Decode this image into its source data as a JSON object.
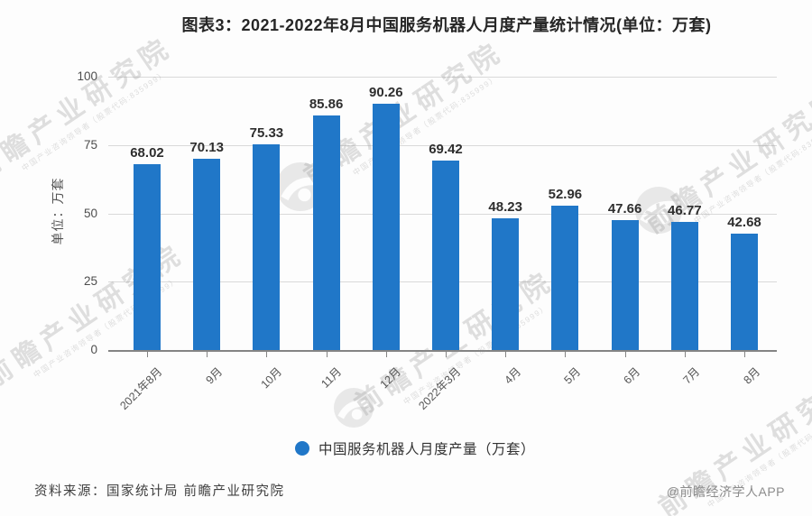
{
  "title": "图表3：2021-2022年8月中国服务机器人月度产量统计情况(单位：万套)",
  "chart_data": {
    "type": "bar",
    "categories": [
      "2021年8月",
      "9月",
      "10月",
      "11月",
      "12月",
      "2022年3月",
      "4月",
      "5月",
      "6月",
      "7月",
      "8月"
    ],
    "values": [
      68.02,
      70.13,
      75.33,
      85.86,
      90.26,
      69.42,
      48.23,
      52.96,
      47.66,
      46.77,
      42.68
    ],
    "title": "图表3：2021-2022年8月中国服务机器人月度产量统计情况(单位：万套)",
    "xlabel": "",
    "ylabel": "单位：万套",
    "ylim": [
      0,
      100
    ],
    "yticks": [
      0,
      25,
      50,
      75,
      100
    ],
    "grid": true,
    "bar_color": "#2077C8",
    "value_label_decimals": 2,
    "legend_position": "bottom",
    "legend_entries": [
      "中国服务机器人月度产量（万套）"
    ]
  },
  "legend": {
    "label": "中国服务机器人月度产量（万套）",
    "marker_color": "#2077C8"
  },
  "footer": {
    "source": "资料来源：国家统计局 前瞻产业研究院",
    "credit": "@前瞻经济学人APP"
  },
  "watermark": {
    "text": "前瞻产业研究院",
    "subtext": "中国产业咨询领导者（股票代码:835999）"
  }
}
